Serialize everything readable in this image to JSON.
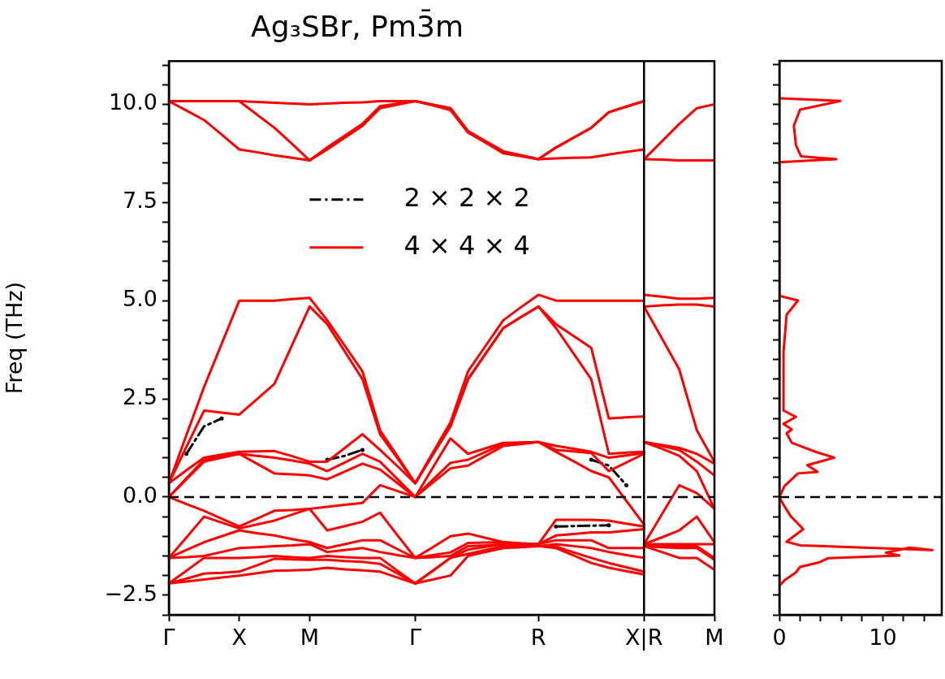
{
  "chart_data": [
    {
      "type": "line",
      "title": "Ag₃SBr, Pm3̄m",
      "ylabel": "Freq (THz)",
      "categories": [
        "Γ",
        null,
        null,
        null,
        "X",
        null,
        null,
        null,
        "M",
        null,
        null,
        null,
        null,
        null,
        "Γ",
        null,
        null,
        null,
        null,
        null,
        null,
        "R",
        null,
        null,
        null,
        null,
        null,
        "X|R",
        null,
        null,
        null,
        "M"
      ],
      "ylim": [
        -3.0,
        11.1
      ],
      "yticks": [
        {
          "value": -3.0,
          "label": null
        },
        {
          "value": -2.5,
          "label": "−2.5"
        },
        {
          "value": -2.0,
          "label": null
        },
        {
          "value": -1.5,
          "label": null
        },
        {
          "value": -1.0,
          "label": null
        },
        {
          "value": -0.5,
          "label": null
        },
        {
          "value": 0,
          "label": "0.0"
        },
        {
          "value": 0.5,
          "label": null
        },
        {
          "value": 1.0,
          "label": null
        },
        {
          "value": 1.5,
          "label": null
        },
        {
          "value": 2.0,
          "label": null
        },
        {
          "value": 2.5,
          "label": "2.5"
        },
        {
          "value": 3.0,
          "label": null
        },
        {
          "value": 3.5,
          "label": null
        },
        {
          "value": 4.0,
          "label": null
        },
        {
          "value": 4.5,
          "label": null
        },
        {
          "value": 5.0,
          "label": "5.0"
        },
        {
          "value": 5.5,
          "label": null
        },
        {
          "value": 6.0,
          "label": null
        },
        {
          "value": 6.5,
          "label": null
        },
        {
          "value": 7.0,
          "label": null
        },
        {
          "value": 7.5,
          "label": "7.5"
        },
        {
          "value": 8.0,
          "label": null
        },
        {
          "value": 8.5,
          "label": null
        },
        {
          "value": 9.0,
          "label": null
        },
        {
          "value": 9.5,
          "label": null
        },
        {
          "value": 10.0,
          "label": "10.0"
        },
        {
          "value": 10.5,
          "label": null
        },
        {
          "value": 11.0,
          "label": null
        }
      ],
      "legend": "top",
      "ref_lines": [
        {
          "axis": "y",
          "value": 0,
          "line_style": "dashed",
          "color": "#000000"
        },
        {
          "axis": "x",
          "value": "X|R",
          "color": "#000000"
        }
      ],
      "series": [
        {
          "name": "2 × 2 × 2",
          "color": "#000000",
          "line_style": "dashed",
          "values": [
            null,
            1.1,
            1.8,
            2.0,
            null,
            null,
            null,
            null,
            null,
            null,
            null,
            null,
            null,
            null,
            null,
            null,
            null,
            null,
            null,
            null,
            null,
            null,
            null,
            null,
            null,
            null,
            null,
            null,
            null,
            null,
            null,
            null
          ]
        },
        {
          "color": "#000000",
          "line_style": "dashed",
          "values": [
            null,
            null,
            null,
            null,
            null,
            null,
            null,
            null,
            null,
            0.95,
            1.05,
            1.2,
            null,
            null,
            null,
            null,
            null,
            null,
            null,
            null,
            null,
            null,
            null,
            null,
            null,
            null,
            null,
            null,
            null,
            null,
            null,
            null
          ]
        },
        {
          "color": "#000000",
          "line_style": "dashed",
          "values": [
            null,
            null,
            null,
            null,
            null,
            null,
            null,
            null,
            null,
            null,
            null,
            null,
            null,
            null,
            null,
            null,
            null,
            null,
            null,
            null,
            null,
            null,
            -0.75,
            -0.74,
            -0.73,
            -0.72,
            null,
            null,
            null,
            null,
            null,
            null
          ]
        },
        {
          "color": "#000000",
          "line_style": "dashed",
          "values": [
            null,
            null,
            null,
            null,
            null,
            null,
            null,
            null,
            null,
            null,
            null,
            null,
            null,
            null,
            null,
            null,
            null,
            null,
            null,
            null,
            null,
            null,
            null,
            null,
            0.95,
            0.8,
            0.3,
            null,
            null,
            null,
            null,
            null
          ]
        },
        {
          "name": "4 × 4 × 4",
          "color": "#ff0000",
          "values": [
            -2.2,
            -2.15,
            -2.1,
            -2.05,
            -2.0,
            -1.94,
            -1.88,
            -1.87,
            -1.85,
            -1.8,
            -1.84,
            -1.87,
            -1.9,
            -2.05,
            -2.2,
            -2.1,
            -2.0,
            -1.5,
            -1.4,
            -1.3,
            -1.28,
            -1.25,
            -1.3,
            -1.49,
            -1.68,
            -1.8,
            -1.89,
            -1.97,
            null,
            null,
            null,
            null
          ]
        },
        {
          "color": "#ff0000",
          "values": [
            -2.2,
            -2.08,
            -1.95,
            -1.93,
            -1.9,
            -1.74,
            -1.57,
            -1.59,
            -1.6,
            -1.6,
            -1.63,
            -1.65,
            -1.7,
            -1.95,
            -2.2,
            -1.88,
            -1.55,
            -1.45,
            -1.35,
            -1.25,
            -1.25,
            -1.25,
            -1.26,
            -1.41,
            -1.55,
            -1.68,
            -1.79,
            -1.9,
            null,
            null,
            null,
            null
          ]
        },
        {
          "color": "#ff0000",
          "values": [
            -2.2,
            -1.88,
            -1.55,
            -1.55,
            -1.55,
            -1.53,
            -1.5,
            -1.53,
            -1.55,
            -1.5,
            -1.53,
            -1.55,
            -1.55,
            -1.88,
            -2.2,
            -1.88,
            -1.55,
            -1.34,
            -1.27,
            -1.2,
            -1.23,
            -1.25,
            -1.2,
            -1.25,
            -1.3,
            -1.4,
            -1.48,
            -1.55,
            null,
            null,
            null,
            null
          ]
        },
        {
          "color": "#ff0000",
          "values": [
            -1.55,
            -1.53,
            -1.5,
            -1.4,
            -1.3,
            -1.28,
            -1.25,
            -1.23,
            -1.2,
            -1.4,
            -1.35,
            -1.3,
            -1.4,
            -1.48,
            -1.55,
            -1.53,
            -1.5,
            -1.25,
            -1.23,
            -1.2,
            -1.2,
            -1.2,
            -1.1,
            -1.1,
            -1.1,
            -1.3,
            -1.3,
            -1.3,
            null,
            null,
            null,
            null
          ]
        },
        {
          "color": "#ff0000",
          "values": [
            -1.55,
            -1.35,
            -1.15,
            -1.0,
            -0.85,
            -0.92,
            -0.98,
            -1.07,
            -1.15,
            -1.3,
            -1.2,
            -1.1,
            -1.1,
            -1.33,
            -1.55,
            -1.48,
            -1.41,
            -1.17,
            -1.16,
            -1.15,
            -1.18,
            -1.2,
            -0.98,
            -0.94,
            -0.9,
            -0.9,
            -0.86,
            -0.82,
            null,
            null,
            null,
            null
          ]
        },
        {
          "color": "#ff0000",
          "values": [
            -1.55,
            -1.03,
            -0.5,
            -0.65,
            -0.8,
            -0.7,
            -0.6,
            -0.45,
            -0.3,
            -0.85,
            -0.74,
            -0.63,
            -0.4,
            -0.98,
            -1.55,
            -1.28,
            -1.0,
            -0.93,
            -1.04,
            -1.15,
            -1.18,
            -1.2,
            -0.58,
            -0.58,
            -0.58,
            -0.6,
            -0.68,
            -0.75,
            null,
            null,
            null,
            null
          ]
        },
        {
          "color": "#ff0000",
          "values": [
            0,
            -0.18,
            -0.35,
            -0.55,
            -0.75,
            -0.55,
            -0.35,
            -0.33,
            -0.3,
            -0.25,
            -0.2,
            -0.15,
            0.3,
            0.15,
            0,
            0.37,
            0.73,
            0.8,
            1.05,
            1.3,
            1.35,
            1.4,
            1.15,
            0.91,
            0.66,
            0.5,
            -0.1,
            -0.7,
            null,
            null,
            null,
            null
          ]
        },
        {
          "color": "#ff0000",
          "values": [
            0,
            0.45,
            0.9,
            1.0,
            1.1,
            0.85,
            0.6,
            0.58,
            0.55,
            0.45,
            0.65,
            0.85,
            0.7,
            0.35,
            0,
            0.44,
            0.87,
            0.95,
            1.15,
            1.35,
            1.38,
            1.4,
            1.2,
            1.16,
            1.12,
            0.66,
            0.88,
            1.1,
            null,
            null,
            null,
            null
          ]
        },
        {
          "color": "#ff0000",
          "values": [
            0,
            0.48,
            0.95,
            1.03,
            1.1,
            1.05,
            1.0,
            0.93,
            0.85,
            0.66,
            0.88,
            1.1,
            0.9,
            0.45,
            0,
            0.75,
            1.49,
            1.1,
            1.24,
            1.38,
            1.39,
            1.4,
            1.3,
            1.23,
            1.15,
            1.0,
            1.06,
            1.12,
            null,
            null,
            null,
            null
          ]
        },
        {
          "color": "#ff0000",
          "values": [
            0.35,
            0.68,
            1.0,
            1.08,
            1.15,
            1.16,
            1.17,
            1.04,
            0.9,
            0.9,
            1.25,
            1.6,
            1.2,
            0.78,
            0.35,
            1.08,
            1.8,
            3.0,
            3.65,
            4.3,
            4.58,
            4.85,
            4.3,
            3.65,
            3.0,
            1.1,
            1.13,
            1.15,
            null,
            null,
            null,
            null
          ]
        },
        {
          "color": "#ff0000",
          "values": [
            0.35,
            1.28,
            2.2,
            2.15,
            2.1,
            2.49,
            2.88,
            3.87,
            4.85,
            4.4,
            3.7,
            3.0,
            1.6,
            0.98,
            0.35,
            1.08,
            1.8,
            3.0,
            3.65,
            4.3,
            4.58,
            4.85,
            4.4,
            4.1,
            3.8,
            2.0,
            2.03,
            2.05,
            null,
            null,
            null,
            null
          ]
        },
        {
          "color": "#ff0000",
          "values": [
            0.35,
            1.58,
            2.8,
            3.9,
            5.0,
            5.0,
            5.0,
            5.04,
            5.07,
            4.5,
            3.85,
            3.2,
            1.7,
            1.03,
            0.35,
            1.13,
            1.9,
            3.2,
            3.85,
            4.5,
            4.83,
            5.15,
            5.0,
            5.0,
            5.0,
            5.0,
            5.0,
            5.0,
            null,
            null,
            null,
            null
          ]
        },
        {
          "color": "#ff0000",
          "values": [
            10.08,
            9.84,
            9.6,
            9.23,
            8.85,
            8.78,
            8.7,
            8.64,
            8.57,
            8.85,
            9.15,
            9.45,
            9.9,
            9.99,
            10.08,
            9.97,
            9.85,
            9.28,
            9.02,
            8.75,
            8.68,
            8.6,
            8.62,
            8.64,
            8.65,
            8.72,
            8.79,
            8.85,
            null,
            null,
            null,
            null
          ]
        },
        {
          "color": "#ff0000",
          "values": [
            10.08,
            10.08,
            10.08,
            10.08,
            10.08,
            9.74,
            9.4,
            8.99,
            8.57,
            8.9,
            9.2,
            9.5,
            9.95,
            10.02,
            10.08,
            9.99,
            9.9,
            9.3,
            9.05,
            8.8,
            8.7,
            8.6,
            8.9,
            9.15,
            9.4,
            9.8,
            9.94,
            10.08,
            null,
            null,
            null,
            null
          ]
        },
        {
          "color": "#ff0000",
          "values": [
            10.08,
            10.08,
            10.08,
            10.08,
            10.08,
            10.06,
            10.04,
            10.02,
            10.0,
            10.02,
            10.04,
            10.05,
            10.08,
            10.08,
            10.08,
            9.99,
            9.9,
            9.32,
            9.06,
            8.8,
            8.7,
            8.6,
            8.9,
            9.15,
            9.4,
            9.8,
            9.94,
            10.08,
            null,
            null,
            null,
            null
          ]
        },
        {
          "color": "#ff0000",
          "values": [
            null,
            null,
            null,
            null,
            null,
            null,
            null,
            null,
            null,
            null,
            null,
            null,
            null,
            null,
            null,
            null,
            null,
            null,
            null,
            null,
            null,
            null,
            null,
            null,
            null,
            null,
            null,
            -1.25,
            -1.4,
            -1.55,
            -1.55,
            -1.85
          ]
        },
        {
          "color": "#ff0000",
          "values": [
            null,
            null,
            null,
            null,
            null,
            null,
            null,
            null,
            null,
            null,
            null,
            null,
            null,
            null,
            null,
            null,
            null,
            null,
            null,
            null,
            null,
            null,
            null,
            null,
            null,
            null,
            null,
            -1.25,
            -1.28,
            -1.3,
            -1.3,
            -1.6
          ]
        },
        {
          "color": "#ff0000",
          "values": [
            null,
            null,
            null,
            null,
            null,
            null,
            null,
            null,
            null,
            null,
            null,
            null,
            null,
            null,
            null,
            null,
            null,
            null,
            null,
            null,
            null,
            null,
            null,
            null,
            null,
            null,
            null,
            -1.25,
            -1.25,
            -1.25,
            -1.25,
            -1.55
          ]
        },
        {
          "color": "#ff0000",
          "values": [
            null,
            null,
            null,
            null,
            null,
            null,
            null,
            null,
            null,
            null,
            null,
            null,
            null,
            null,
            null,
            null,
            null,
            null,
            null,
            null,
            null,
            null,
            null,
            null,
            null,
            null,
            null,
            -1.2,
            -1.2,
            -1.2,
            -1.2,
            -1.2
          ]
        },
        {
          "color": "#ff0000",
          "values": [
            null,
            null,
            null,
            null,
            null,
            null,
            null,
            null,
            null,
            null,
            null,
            null,
            null,
            null,
            null,
            null,
            null,
            null,
            null,
            null,
            null,
            null,
            null,
            null,
            null,
            null,
            null,
            -1.2,
            -1.03,
            -0.85,
            -0.5,
            -1.15
          ]
        },
        {
          "color": "#ff0000",
          "values": [
            null,
            null,
            null,
            null,
            null,
            null,
            null,
            null,
            null,
            null,
            null,
            null,
            null,
            null,
            null,
            null,
            null,
            null,
            null,
            null,
            null,
            null,
            null,
            null,
            null,
            null,
            null,
            -1.2,
            -0.45,
            0.3,
            0.1,
            -0.3
          ]
        },
        {
          "color": "#ff0000",
          "values": [
            null,
            null,
            null,
            null,
            null,
            null,
            null,
            null,
            null,
            null,
            null,
            null,
            null,
            null,
            null,
            null,
            null,
            null,
            null,
            null,
            null,
            null,
            null,
            null,
            null,
            null,
            null,
            1.4,
            1.23,
            1.05,
            0.66,
            -0.3
          ]
        },
        {
          "color": "#ff0000",
          "values": [
            null,
            null,
            null,
            null,
            null,
            null,
            null,
            null,
            null,
            null,
            null,
            null,
            null,
            null,
            null,
            null,
            null,
            null,
            null,
            null,
            null,
            null,
            null,
            null,
            null,
            null,
            null,
            1.4,
            1.3,
            1.2,
            0.9,
            0.55
          ]
        },
        {
          "color": "#ff0000",
          "values": [
            null,
            null,
            null,
            null,
            null,
            null,
            null,
            null,
            null,
            null,
            null,
            null,
            null,
            null,
            null,
            null,
            null,
            null,
            null,
            null,
            null,
            null,
            null,
            null,
            null,
            null,
            null,
            1.4,
            1.33,
            1.25,
            1.1,
            0.85
          ]
        },
        {
          "color": "#ff0000",
          "values": [
            null,
            null,
            null,
            null,
            null,
            null,
            null,
            null,
            null,
            null,
            null,
            null,
            null,
            null,
            null,
            null,
            null,
            null,
            null,
            null,
            null,
            null,
            null,
            null,
            null,
            null,
            null,
            4.85,
            4.05,
            3.25,
            1.7,
            0.9
          ]
        },
        {
          "color": "#ff0000",
          "values": [
            null,
            null,
            null,
            null,
            null,
            null,
            null,
            null,
            null,
            null,
            null,
            null,
            null,
            null,
            null,
            null,
            null,
            null,
            null,
            null,
            null,
            null,
            null,
            null,
            null,
            null,
            null,
            4.85,
            4.88,
            4.9,
            4.9,
            4.85
          ]
        },
        {
          "color": "#ff0000",
          "values": [
            null,
            null,
            null,
            null,
            null,
            null,
            null,
            null,
            null,
            null,
            null,
            null,
            null,
            null,
            null,
            null,
            null,
            null,
            null,
            null,
            null,
            null,
            null,
            null,
            null,
            null,
            null,
            5.15,
            5.1,
            5.05,
            5.05,
            5.07
          ]
        },
        {
          "color": "#ff0000",
          "values": [
            null,
            null,
            null,
            null,
            null,
            null,
            null,
            null,
            null,
            null,
            null,
            null,
            null,
            null,
            null,
            null,
            null,
            null,
            null,
            null,
            null,
            null,
            null,
            null,
            null,
            null,
            null,
            8.6,
            8.59,
            8.57,
            8.57,
            8.57
          ]
        },
        {
          "color": "#ff0000",
          "values": [
            null,
            null,
            null,
            null,
            null,
            null,
            null,
            null,
            null,
            null,
            null,
            null,
            null,
            null,
            null,
            null,
            null,
            null,
            null,
            null,
            null,
            null,
            null,
            null,
            null,
            null,
            null,
            8.6,
            9.05,
            9.5,
            9.9,
            10.0
          ]
        }
      ]
    },
    {
      "type": "line",
      "tick_labels": "x",
      "xlim": [
        0,
        15.7
      ],
      "xticks": [
        0,
        {
          "value": 2,
          "label": null
        },
        {
          "value": 4,
          "label": null
        },
        {
          "value": 6,
          "label": null
        },
        {
          "value": 8,
          "label": null
        },
        10,
        {
          "value": 12,
          "label": null
        },
        {
          "value": 14,
          "label": null
        }
      ],
      "ylim": [
        -3.0,
        11.1
      ],
      "yticks": [
        {
          "value": -3.0,
          "label": null
        },
        {
          "value": -2.5,
          "label": null
        },
        {
          "value": -2.0,
          "label": null
        },
        {
          "value": -1.5,
          "label": null
        },
        {
          "value": -1.0,
          "label": null
        },
        {
          "value": -0.5,
          "label": null
        },
        {
          "value": 0,
          "label": null
        },
        {
          "value": 0.5,
          "label": null
        },
        {
          "value": 1.0,
          "label": null
        },
        {
          "value": 1.5,
          "label": null
        },
        {
          "value": 2.0,
          "label": null
        },
        {
          "value": 2.5,
          "label": null
        },
        {
          "value": 3.0,
          "label": null
        },
        {
          "value": 3.5,
          "label": null
        },
        {
          "value": 4.0,
          "label": null
        },
        {
          "value": 4.5,
          "label": null
        },
        {
          "value": 5.0,
          "label": null
        },
        {
          "value": 5.5,
          "label": null
        },
        {
          "value": 6.0,
          "label": null
        },
        {
          "value": 6.5,
          "label": null
        },
        {
          "value": 7.0,
          "label": null
        },
        {
          "value": 7.5,
          "label": null
        },
        {
          "value": 8.0,
          "label": null
        },
        {
          "value": 8.5,
          "label": null
        },
        {
          "value": 9.0,
          "label": null
        },
        {
          "value": 9.5,
          "label": null
        },
        {
          "value": 10.0,
          "label": null
        },
        {
          "value": 10.5,
          "label": null
        },
        {
          "value": 11.0,
          "label": null
        }
      ],
      "ref_lines": [
        {
          "axis": "y",
          "value": 0,
          "line_style": "dashed",
          "color": "#000000"
        }
      ],
      "series": [
        {
          "color": "#ff0000",
          "x": [
            0,
            0.5,
            1.6,
            2.0,
            3.9,
            4.7,
            11.6,
            10.3,
            12.6,
            14.8,
            2.0,
            0.7,
            2.3,
            1.8,
            1.1,
            0.4,
            0,
            0.5,
            1.8,
            3.7,
            2.7,
            5.3,
            3.6,
            1.2,
            0.7,
            1.2,
            0.4,
            1.6,
            0.4,
            0.4,
            0.7,
            1.8,
            0,
            0,
            5.5,
            2.1,
            1.6,
            1.4,
            2.0,
            5.9,
            0
          ],
          "values": [
            -2.26,
            -2.12,
            -1.92,
            -1.78,
            -1.66,
            -1.56,
            -1.49,
            -1.42,
            -1.29,
            -1.35,
            -1.23,
            -1.14,
            -0.82,
            -0.68,
            -0.49,
            -0.2,
            0,
            0.28,
            0.6,
            0.64,
            0.81,
            1.0,
            1.14,
            1.38,
            1.62,
            1.72,
            1.86,
            2.04,
            2.2,
            3.69,
            4.64,
            5.0,
            5.12,
            8.52,
            8.6,
            8.67,
            8.96,
            9.45,
            9.86,
            10.08,
            10.15
          ]
        }
      ]
    }
  ]
}
